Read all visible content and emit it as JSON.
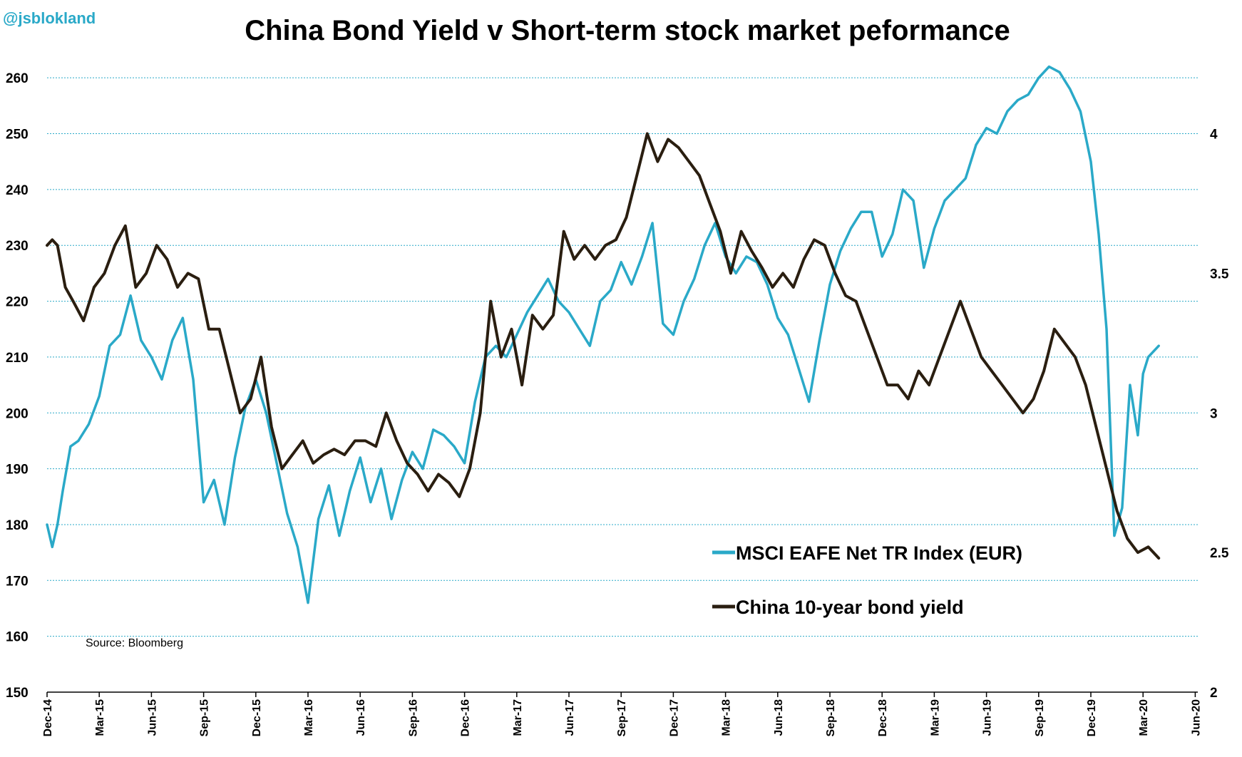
{
  "handle": "@jsblokland",
  "source": "Source: Bloomberg",
  "colors": {
    "msci": "#2aa9c8",
    "china": "#2a1e10",
    "grid": "#2aa9c8"
  },
  "chart_data": {
    "type": "line",
    "title": "China Bond Yield v Short-term stock market peformance",
    "xlabel": "",
    "ylabel_left": "",
    "ylabel_right": "",
    "ylim_left": [
      150,
      265
    ],
    "ylim_right": [
      2,
      4.3
    ],
    "yticks_left": [
      150,
      160,
      170,
      180,
      190,
      200,
      210,
      220,
      230,
      240,
      250,
      260
    ],
    "yticks_right": [
      2,
      2.5,
      3,
      3.5,
      4
    ],
    "x_ticks": [
      "Dec-14",
      "Mar-15",
      "Jun-15",
      "Sep-15",
      "Dec-15",
      "Mar-16",
      "Jun-16",
      "Sep-16",
      "Dec-16",
      "Mar-17",
      "Jun-17",
      "Sep-17",
      "Dec-17",
      "Mar-18",
      "Jun-18",
      "Sep-18",
      "Dec-18",
      "Mar-19",
      "Jun-19",
      "Sep-19",
      "Dec-19",
      "Mar-20",
      "Jun-20"
    ],
    "grid": true,
    "legend_position": "bottom-right",
    "series": [
      {
        "name": "MSCI EAFE Net TR Index (EUR)",
        "axis": "left",
        "x": [
          0,
          0.1,
          0.2,
          0.3,
          0.45,
          0.6,
          0.8,
          1.0,
          1.2,
          1.4,
          1.6,
          1.8,
          2.0,
          2.2,
          2.4,
          2.6,
          2.8,
          3.0,
          3.2,
          3.4,
          3.6,
          3.8,
          4.0,
          4.2,
          4.4,
          4.6,
          4.8,
          5.0,
          5.2,
          5.4,
          5.6,
          5.8,
          6.0,
          6.2,
          6.4,
          6.6,
          6.8,
          7.0,
          7.2,
          7.4,
          7.6,
          7.8,
          8.0,
          8.2,
          8.4,
          8.6,
          8.8,
          9.0,
          9.2,
          9.4,
          9.6,
          9.8,
          10.0,
          10.2,
          10.4,
          10.6,
          10.8,
          11.0,
          11.2,
          11.4,
          11.6,
          11.8,
          12.0,
          12.2,
          12.4,
          12.6,
          12.8,
          13.0,
          13.2,
          13.4,
          13.6,
          13.8,
          14.0,
          14.2,
          14.4,
          14.6,
          14.8,
          15.0,
          15.2,
          15.4,
          15.6,
          15.8,
          16.0,
          16.2,
          16.4,
          16.6,
          16.8,
          17.0,
          17.2,
          17.4,
          17.6,
          17.8,
          18.0,
          18.2,
          18.4,
          18.6,
          18.8,
          19.0,
          19.2,
          19.4,
          19.6,
          19.8,
          20.0,
          20.15,
          20.3,
          20.45,
          20.6,
          20.75,
          20.9,
          21.0,
          21.1,
          21.2,
          21.3
        ],
        "values": [
          180,
          176,
          180,
          186,
          194,
          195,
          198,
          203,
          212,
          214,
          221,
          213,
          210,
          206,
          213,
          217,
          206,
          184,
          188,
          180,
          192,
          201,
          206,
          200,
          191,
          182,
          176,
          166,
          181,
          187,
          178,
          186,
          192,
          184,
          190,
          181,
          188,
          193,
          190,
          197,
          196,
          194,
          191,
          202,
          210,
          212,
          210,
          214,
          218,
          221,
          224,
          220,
          218,
          215,
          212,
          220,
          222,
          227,
          223,
          228,
          234,
          216,
          214,
          220,
          224,
          230,
          234,
          228,
          225,
          228,
          227,
          223,
          217,
          214,
          208,
          202,
          213,
          223,
          229,
          233,
          236,
          236,
          228,
          232,
          240,
          238,
          226,
          233,
          238,
          240,
          242,
          248,
          251,
          250,
          254,
          256,
          257,
          260,
          262,
          261,
          258,
          254,
          245,
          232,
          215,
          178,
          183,
          205,
          196,
          207,
          210,
          211,
          212
        ]
      },
      {
        "name": "China 10-year bond yield",
        "axis": "right",
        "x": [
          0,
          0.1,
          0.2,
          0.35,
          0.5,
          0.7,
          0.9,
          1.1,
          1.3,
          1.5,
          1.7,
          1.9,
          2.1,
          2.3,
          2.5,
          2.7,
          2.9,
          3.1,
          3.3,
          3.5,
          3.7,
          3.9,
          4.1,
          4.3,
          4.5,
          4.7,
          4.9,
          5.1,
          5.3,
          5.5,
          5.7,
          5.9,
          6.1,
          6.3,
          6.5,
          6.7,
          6.9,
          7.1,
          7.3,
          7.5,
          7.7,
          7.9,
          8.1,
          8.3,
          8.5,
          8.7,
          8.9,
          9.1,
          9.3,
          9.5,
          9.7,
          9.9,
          10.1,
          10.3,
          10.5,
          10.7,
          10.9,
          11.1,
          11.3,
          11.5,
          11.7,
          11.9,
          12.1,
          12.3,
          12.5,
          12.7,
          12.9,
          13.1,
          13.3,
          13.5,
          13.7,
          13.9,
          14.1,
          14.3,
          14.5,
          14.7,
          14.9,
          15.1,
          15.3,
          15.5,
          15.7,
          15.9,
          16.1,
          16.3,
          16.5,
          16.7,
          16.9,
          17.1,
          17.3,
          17.5,
          17.7,
          17.9,
          18.1,
          18.3,
          18.5,
          18.7,
          18.9,
          19.1,
          19.3,
          19.5,
          19.7,
          19.9,
          20.1,
          20.3,
          20.5,
          20.7,
          20.9,
          21.1,
          21.3
        ],
        "values": [
          3.6,
          3.62,
          3.6,
          3.45,
          3.4,
          3.33,
          3.45,
          3.5,
          3.6,
          3.67,
          3.45,
          3.5,
          3.6,
          3.55,
          3.45,
          3.5,
          3.48,
          3.3,
          3.3,
          3.15,
          3.0,
          3.05,
          3.2,
          2.95,
          2.8,
          2.85,
          2.9,
          2.82,
          2.85,
          2.87,
          2.85,
          2.9,
          2.9,
          2.88,
          3.0,
          2.9,
          2.82,
          2.78,
          2.72,
          2.78,
          2.75,
          2.7,
          2.8,
          3.0,
          3.4,
          3.2,
          3.3,
          3.1,
          3.35,
          3.3,
          3.35,
          3.65,
          3.55,
          3.6,
          3.55,
          3.6,
          3.62,
          3.7,
          3.85,
          4.0,
          3.9,
          3.98,
          3.95,
          3.9,
          3.85,
          3.75,
          3.65,
          3.5,
          3.65,
          3.58,
          3.52,
          3.45,
          3.5,
          3.45,
          3.55,
          3.62,
          3.6,
          3.5,
          3.42,
          3.4,
          3.3,
          3.2,
          3.1,
          3.1,
          3.05,
          3.15,
          3.1,
          3.2,
          3.3,
          3.4,
          3.3,
          3.2,
          3.15,
          3.1,
          3.05,
          3.0,
          3.05,
          3.15,
          3.3,
          3.25,
          3.2,
          3.1,
          2.95,
          2.8,
          2.65,
          2.55,
          2.5,
          2.52,
          2.48
        ]
      }
    ]
  }
}
